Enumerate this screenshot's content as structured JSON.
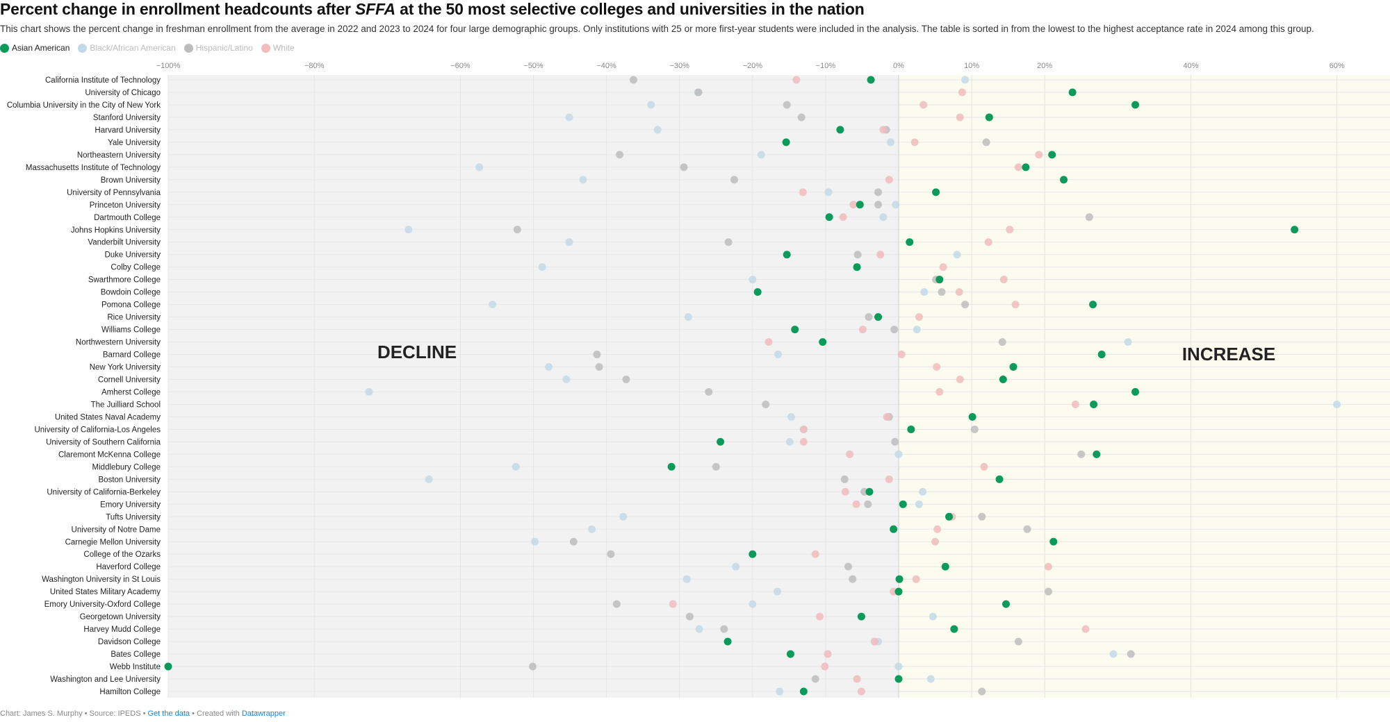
{
  "title_pre": "Percent change in enrollment headcounts after ",
  "title_em": "SFFA",
  "title_post": " at the 50 most selective colleges and universities in the nation",
  "description": "This chart shows the percent change in freshman enrollment from the average in 2022 and 2023 to 2024 for four large demographic groups. Only institutions with 25 or more first-year students were included in the analysis. The table is sorted in from the lowest to the highest acceptance rate in 2024 among this group.",
  "footer": {
    "credit": "Chart: James S. Murphy • Source: IPEDS • ",
    "get_data": "Get the data",
    "created": " • Created with ",
    "datawrapper": "Datawrapper"
  },
  "chart_data": {
    "type": "scatter",
    "title": "Percent change in enrollment headcounts after SFFA at the 50 most selective colleges and universities in the nation",
    "xlim": [
      -100,
      67
    ],
    "xticks": [
      -100,
      -80,
      -60,
      -50,
      -40,
      -30,
      -20,
      -10,
      0,
      10,
      20,
      40,
      60
    ],
    "xtick_labels": [
      "−100%",
      "−80%",
      "−60%",
      "−50%",
      "−40%",
      "−30%",
      "−20%",
      "−10%",
      "0%",
      "10%",
      "20%",
      "40%",
      "60%"
    ],
    "annotations": {
      "decline": "DECLINE",
      "increase": "INCREASE"
    },
    "series": [
      {
        "name": "Asian American",
        "color": "#0a9a5a",
        "opacity": 1
      },
      {
        "name": "Black/African American",
        "color": "#c3d9e6",
        "opacity": 0.85
      },
      {
        "name": "Hispanic/Latino",
        "color": "#bdbdbd",
        "opacity": 0.85
      },
      {
        "name": "White",
        "color": "#f0bcbc",
        "opacity": 0.85
      }
    ],
    "legend_placement": "top-left",
    "rows": [
      {
        "name": "California Institute of Technology",
        "values": [
          -3.8,
          9.1,
          -36.3,
          -14.0
        ]
      },
      {
        "name": "University of Chicago",
        "values": [
          23.8,
          -27.5,
          -27.4,
          8.7
        ]
      },
      {
        "name": "Columbia University in the City of New York",
        "values": [
          32.4,
          -33.9,
          -15.3,
          3.4
        ]
      },
      {
        "name": "Stanford University",
        "values": [
          12.4,
          -45.1,
          -13.3,
          8.4
        ]
      },
      {
        "name": "Harvard University",
        "values": [
          -8.0,
          -33.0,
          -1.7,
          -2.1
        ]
      },
      {
        "name": "Yale University",
        "values": [
          -15.4,
          -1.1,
          12.0,
          2.2
        ]
      },
      {
        "name": "Northeastern University",
        "values": [
          21.0,
          -18.8,
          -38.2,
          19.2
        ]
      },
      {
        "name": "Massachusetts Institute of Technology",
        "values": [
          17.4,
          -57.4,
          -29.4,
          16.4
        ]
      },
      {
        "name": "Brown University",
        "values": [
          22.6,
          -43.2,
          -22.5,
          -1.3
        ]
      },
      {
        "name": "University of Pennsylvania",
        "values": [
          5.1,
          -9.6,
          -2.8,
          -13.1
        ]
      },
      {
        "name": "Princeton University",
        "values": [
          -5.3,
          -0.4,
          -2.8,
          -6.2
        ]
      },
      {
        "name": "Dartmouth College",
        "values": [
          -9.5,
          -2.1,
          26.1,
          -7.6
        ]
      },
      {
        "name": "Johns Hopkins University",
        "values": [
          54.2,
          -67.1,
          -52.2,
          15.2
        ]
      },
      {
        "name": "Vanderbilt University",
        "values": [
          1.5,
          -45.1,
          -23.3,
          12.3
        ]
      },
      {
        "name": "Duke University",
        "values": [
          -15.3,
          8.0,
          -5.6,
          -2.5
        ]
      },
      {
        "name": "Colby College",
        "values": [
          -5.7,
          -48.8,
          -5.7,
          6.1
        ]
      },
      {
        "name": "Swarthmore College",
        "values": [
          5.6,
          -20.0,
          5.1,
          14.4
        ]
      },
      {
        "name": "Bowdoin College",
        "values": [
          -19.3,
          3.5,
          5.9,
          8.3
        ]
      },
      {
        "name": "Pomona College",
        "values": [
          26.6,
          -55.6,
          9.1,
          16.0
        ]
      },
      {
        "name": "Rice University",
        "values": [
          -2.8,
          -28.8,
          -4.1,
          2.8
        ]
      },
      {
        "name": "Williams College",
        "values": [
          -14.2,
          2.5,
          -0.6,
          -4.9
        ]
      },
      {
        "name": "Northwestern University",
        "values": [
          -10.4,
          31.4,
          14.2,
          -17.8
        ]
      },
      {
        "name": "Barnard College",
        "values": [
          27.8,
          -16.5,
          -41.3,
          0.4
        ]
      },
      {
        "name": "New York University",
        "values": [
          15.7,
          -47.9,
          -41.0,
          5.2
        ]
      },
      {
        "name": "Cornell University",
        "values": [
          14.3,
          -45.5,
          -37.3,
          8.4
        ]
      },
      {
        "name": "Amherst College",
        "values": [
          32.4,
          -72.5,
          -26.0,
          5.6
        ]
      },
      {
        "name": "The Juilliard School",
        "values": [
          26.7,
          60.0,
          -18.2,
          24.2
        ]
      },
      {
        "name": "United States Naval Academy",
        "values": [
          10.1,
          -14.7,
          -1.3,
          -1.6
        ]
      },
      {
        "name": "University of California-Los Angeles",
        "values": [
          1.7,
          -13.0,
          10.4,
          -13.0
        ]
      },
      {
        "name": "University of Southern California",
        "values": [
          -24.4,
          -14.9,
          -0.5,
          -13.0
        ]
      },
      {
        "name": "Claremont McKenna College",
        "values": [
          27.1,
          0.0,
          25.0,
          -6.7
        ]
      },
      {
        "name": "Middlebury College",
        "values": [
          -31.1,
          -52.4,
          -25.0,
          11.7
        ]
      },
      {
        "name": "Boston University",
        "values": [
          13.8,
          -64.3,
          -7.4,
          -1.3
        ]
      },
      {
        "name": "University of California-Berkeley",
        "values": [
          -4.0,
          3.3,
          -4.7,
          -7.3
        ]
      },
      {
        "name": "Emory University",
        "values": [
          0.6,
          2.8,
          -4.2,
          -5.8
        ]
      },
      {
        "name": "Tufts University",
        "values": [
          6.9,
          -37.7,
          11.4,
          7.3
        ]
      },
      {
        "name": "University of Notre Dame",
        "values": [
          -0.7,
          -42.0,
          17.6,
          5.3
        ]
      },
      {
        "name": "Carnegie Mellon University",
        "values": [
          21.2,
          -49.8,
          -44.5,
          5.0
        ]
      },
      {
        "name": "College of the Ozarks",
        "values": [
          -20.0,
          null,
          -39.4,
          -11.4
        ]
      },
      {
        "name": "Haverford College",
        "values": [
          6.4,
          -22.3,
          -6.9,
          20.5
        ]
      },
      {
        "name": "Washington University in St Louis",
        "values": [
          0.1,
          -29.0,
          -6.3,
          2.4
        ]
      },
      {
        "name": "United States Military Academy",
        "values": [
          0.0,
          -16.6,
          20.5,
          -0.7
        ]
      },
      {
        "name": "Emory University-Oxford College",
        "values": [
          14.7,
          -20.0,
          -38.6,
          -30.9
        ]
      },
      {
        "name": "Georgetown University",
        "values": [
          -5.1,
          4.7,
          -28.6,
          -10.8
        ]
      },
      {
        "name": "Harvey Mudd College",
        "values": [
          7.6,
          -27.3,
          -23.9,
          25.6
        ]
      },
      {
        "name": "Davidson College",
        "values": [
          -23.4,
          -2.8,
          16.4,
          -3.3
        ]
      },
      {
        "name": "Bates College",
        "values": [
          -14.8,
          29.4,
          31.8,
          -9.7
        ]
      },
      {
        "name": "Webb Institute",
        "values": [
          -100.0,
          0.0,
          -50.1,
          -10.1
        ]
      },
      {
        "name": "Washington and Lee University",
        "values": [
          0.0,
          4.4,
          -11.4,
          -5.7
        ]
      },
      {
        "name": "Hamilton College",
        "values": [
          -13.0,
          -16.3,
          11.4,
          -5.1
        ]
      }
    ]
  }
}
